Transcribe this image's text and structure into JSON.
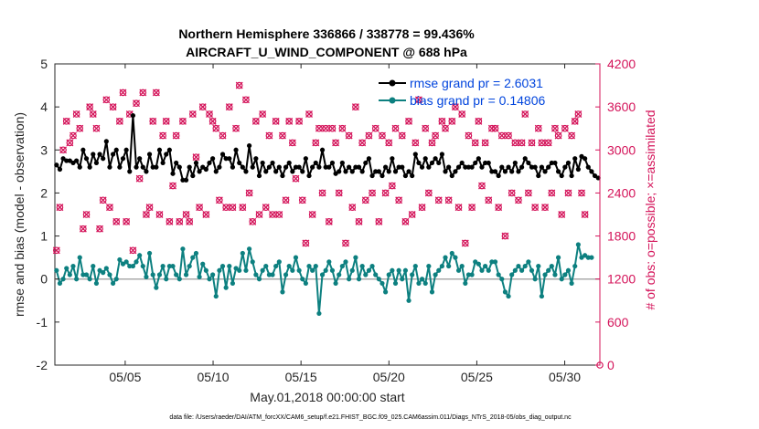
{
  "chart_data": {
    "type": "line",
    "title_line1": "Northern Hemisphere 336866 / 338778 = 99.436%",
    "title_line2": "AIRCRAFT_U_WIND_COMPONENT @ 688 hPa",
    "xlabel": "May.01,2018 00:00:00 start",
    "ylabel_left": "rmse and bias (model - observation)",
    "ylabel_right": "# of obs: o=possible; ×=assimilated",
    "footnote": "data file: /Users/raeder/DAI/ATM_forcXX/CAM6_setup/f.e21.FHIST_BGC.f09_025.CAM6assim.011/Diags_NTrS_2018-05/obs_diag_output.nc",
    "x_ticks": [
      "05/05",
      "05/10",
      "05/15",
      "05/20",
      "05/25",
      "05/30"
    ],
    "x_tick_values": [
      5,
      10,
      15,
      20,
      25,
      30
    ],
    "xlim": [
      1,
      32
    ],
    "ylim_left": [
      -2,
      5
    ],
    "ylim_right": [
      0,
      4200
    ],
    "y_ticks_left": [
      "-2",
      "-1",
      "0",
      "1",
      "2",
      "3",
      "4",
      "5"
    ],
    "y_ticks_right": [
      "0",
      "600",
      "1200",
      "1800",
      "2400",
      "3000",
      "3600",
      "4200"
    ],
    "legend_position": "top-right",
    "colors": {
      "rmse": "#000000",
      "bias": "#0d8080",
      "obs": "#d4145a",
      "zero_line": "#aaaaaa"
    },
    "series": [
      {
        "name": "rmse grand pr = 2.6031",
        "values": [
          2.65,
          2.55,
          2.8,
          2.75,
          2.75,
          2.7,
          2.75,
          2.6,
          3.0,
          2.8,
          2.6,
          2.9,
          2.7,
          2.9,
          2.8,
          3.2,
          2.6,
          2.9,
          3.0,
          2.6,
          2.8,
          3.0,
          2.5,
          3.8,
          2.6,
          2.8,
          2.6,
          2.5,
          2.9,
          2.6,
          2.6,
          3.0,
          2.7,
          2.9,
          3.0,
          2.45,
          2.7,
          2.6,
          2.3,
          2.3,
          2.6,
          2.4,
          2.7,
          2.5,
          2.6,
          2.55,
          2.7,
          2.8,
          2.5,
          2.6,
          2.9,
          2.8,
          2.8,
          2.6,
          3.0,
          2.7,
          2.6,
          2.5,
          3.1,
          2.6,
          2.8,
          2.4,
          2.7,
          2.5,
          2.6,
          2.7,
          2.5,
          2.6,
          2.4,
          2.6,
          2.7,
          2.5,
          2.6,
          2.6,
          2.5,
          2.8,
          2.4,
          2.6,
          2.7,
          2.6,
          3.0,
          2.6,
          2.6,
          2.7,
          2.45,
          2.5,
          2.7,
          2.5,
          2.6,
          2.5,
          2.6,
          2.6,
          2.5,
          2.7,
          2.8,
          2.4,
          2.5,
          2.5,
          2.4,
          2.6,
          2.5,
          2.8,
          2.5,
          2.6,
          2.6,
          2.4,
          2.5,
          2.4,
          2.9,
          2.7,
          2.6,
          2.8,
          2.6,
          2.7,
          2.8,
          2.7,
          2.9,
          2.5,
          2.6,
          2.4,
          2.5,
          2.6,
          2.7,
          2.6,
          2.6,
          2.6,
          2.7,
          2.8,
          2.6,
          2.7,
          2.7,
          2.5,
          2.5,
          2.4,
          2.6,
          2.5,
          2.6,
          2.5,
          2.7,
          2.5,
          2.6,
          2.8,
          2.7,
          2.6,
          2.6,
          2.4,
          2.6,
          2.5,
          2.6,
          2.7,
          2.7,
          2.5,
          2.4,
          2.6,
          2.7,
          2.4,
          2.8,
          2.55,
          2.85,
          2.8,
          2.6,
          2.5,
          2.4,
          2.35
        ]
      },
      {
        "name": "bias grand pr = 0.14806",
        "values": [
          0.2,
          -0.1,
          0.0,
          0.25,
          0.1,
          0.3,
          0.0,
          0.5,
          0.1,
          0.1,
          0.0,
          0.3,
          -0.1,
          0.2,
          0.15,
          0.25,
          0.1,
          -0.1,
          0.0,
          0.45,
          0.35,
          0.4,
          0.3,
          0.3,
          0.4,
          0.55,
          0.3,
          0.05,
          0.6,
          0.1,
          -0.2,
          0.1,
          0.3,
          0.0,
          0.3,
          0.3,
          0.1,
          0.0,
          0.7,
          0.1,
          0.3,
          0.5,
          0.6,
          0.05,
          0.35,
          0.2,
          0.0,
          0.1,
          -0.4,
          0.2,
          0.3,
          -0.2,
          0.3,
          -0.1,
          0.25,
          0.2,
          0.6,
          0.2,
          0.7,
          0.4,
          0.1,
          0.0,
          0.2,
          0.3,
          0.1,
          0.1,
          0.3,
          0.4,
          -0.3,
          0.1,
          0.3,
          0.2,
          0.5,
          0.2,
          0.0,
          -0.1,
          0.3,
          0.2,
          0.3,
          -0.8,
          0.1,
          0.2,
          0.4,
          0.2,
          -0.1,
          0.1,
          0.3,
          0.4,
          0.0,
          0.2,
          0.5,
          0.0,
          0.3,
          0.1,
          0.2,
          0.3,
          0.1,
          0.0,
          -0.1,
          -0.3,
          0.1,
          0.2,
          -0.1,
          0.2,
          0.0,
          0.2,
          -0.5,
          0.1,
          0.3,
          -0.1,
          0.0,
          -0.1,
          0.3,
          -0.3,
          0.1,
          0.2,
          0.3,
          0.5,
          0.3,
          0.6,
          0.5,
          0.2,
          0.3,
          -0.1,
          0.1,
          0.1,
          0.4,
          0.35,
          0.2,
          0.3,
          0.2,
          0.4,
          0.4,
          0.1,
          0.0,
          -0.3,
          -0.4,
          0.1,
          0.2,
          0.3,
          0.2,
          0.3,
          0.4,
          0.2,
          0.0,
          0.3,
          -0.4,
          0.1,
          0.2,
          0.3,
          0.1,
          0.5,
          0.0,
          0.1,
          0.2,
          -0.1,
          0.3,
          0.8,
          0.5,
          0.55,
          0.5,
          0.5
        ]
      }
    ],
    "obs_possible": [
      1600,
      2200,
      3000,
      3400,
      3100,
      3200,
      3500,
      3300,
      1900,
      2100,
      3600,
      3500,
      3300,
      1900,
      2300,
      3700,
      2200,
      3600,
      2000,
      3400,
      3800,
      2000,
      3500,
      1600,
      3650,
      2600,
      3800,
      2100,
      2200,
      3400,
      3800,
      2100,
      3200,
      3400,
      2000,
      2500,
      3200,
      2000,
      3400,
      2100,
      2000,
      3500,
      2900,
      2200,
      3600,
      2100,
      3500,
      3400,
      3300,
      2300,
      3200,
      2200,
      3600,
      2200,
      3300,
      3900,
      2200,
      3700,
      2400,
      2000,
      3400,
      2100,
      3500,
      2200,
      3200,
      2100,
      3400,
      2100,
      3200,
      2300,
      3400,
      3100,
      2600,
      3400,
      2300,
      1700,
      3500,
      2100,
      3100,
      3300,
      2400,
      3300,
      2000,
      3300,
      3100,
      2400,
      3300,
      1700,
      3200,
      2200,
      3600,
      2000,
      3100,
      2300,
      3200,
      2400,
      3300,
      2000,
      3200,
      2400,
      3100,
      2500,
      3300,
      2300,
      3200,
      2000,
      3400,
      2100,
      3100,
      3700,
      2200,
      3300,
      2400,
      3100,
      3200,
      2300,
      3400,
      3300,
      2300,
      3400,
      3600,
      2200,
      3500,
      1700,
      3200,
      2200,
      3100,
      3400,
      2500,
      3100,
      2300,
      3300,
      3300,
      2200,
      3200,
      1800,
      3200,
      2400,
      3100,
      2300,
      3100,
      3500,
      2400,
      3100,
      2200,
      3300,
      3100,
      2200,
      3100,
      2400,
      3300,
      3200,
      2100,
      3300,
      2400,
      3200,
      3400,
      3500,
      2400,
      2100
    ],
    "obs_assimilated": [
      1600,
      2200,
      3000,
      3400,
      3100,
      3200,
      3500,
      3300,
      1900,
      2100,
      3600,
      3500,
      3300,
      1900,
      2300,
      3700,
      2200,
      3600,
      2000,
      3400,
      3800,
      2000,
      3500,
      1600,
      3650,
      2600,
      3800,
      2100,
      2200,
      3400,
      3800,
      2100,
      3200,
      3400,
      2000,
      2500,
      3200,
      2000,
      3400,
      2100,
      2000,
      3500,
      2900,
      2200,
      3600,
      2100,
      3500,
      3400,
      3300,
      2300,
      3200,
      2200,
      3600,
      2200,
      3300,
      3900,
      2200,
      3700,
      2400,
      2000,
      3400,
      2100,
      3500,
      2200,
      3200,
      2100,
      3400,
      2100,
      3200,
      2300,
      3400,
      3100,
      2600,
      3400,
      2300,
      1700,
      3500,
      2100,
      3100,
      3300,
      2400,
      3300,
      2000,
      3300,
      3100,
      2400,
      3300,
      1700,
      3200,
      2200,
      3600,
      2000,
      3100,
      2300,
      3200,
      2400,
      3300,
      2000,
      3200,
      2400,
      3100,
      2500,
      3300,
      2300,
      3200,
      2000,
      3400,
      2100,
      3100,
      3700,
      2200,
      3300,
      2400,
      3100,
      3200,
      2300,
      3400,
      3300,
      2300,
      3400,
      3600,
      2200,
      3500,
      1700,
      3200,
      2200,
      3100,
      3400,
      2500,
      3100,
      2300,
      3300,
      3300,
      2200,
      3200,
      1800,
      3200,
      2400,
      3100,
      2300,
      3100,
      3500,
      2400,
      3100,
      2200,
      3300,
      3100,
      2200,
      3100,
      2400,
      3300,
      3200,
      2100,
      3300,
      2400,
      3200,
      3400,
      3500,
      2400,
      2100
    ],
    "obs_last_point": 0,
    "grid": false
  }
}
